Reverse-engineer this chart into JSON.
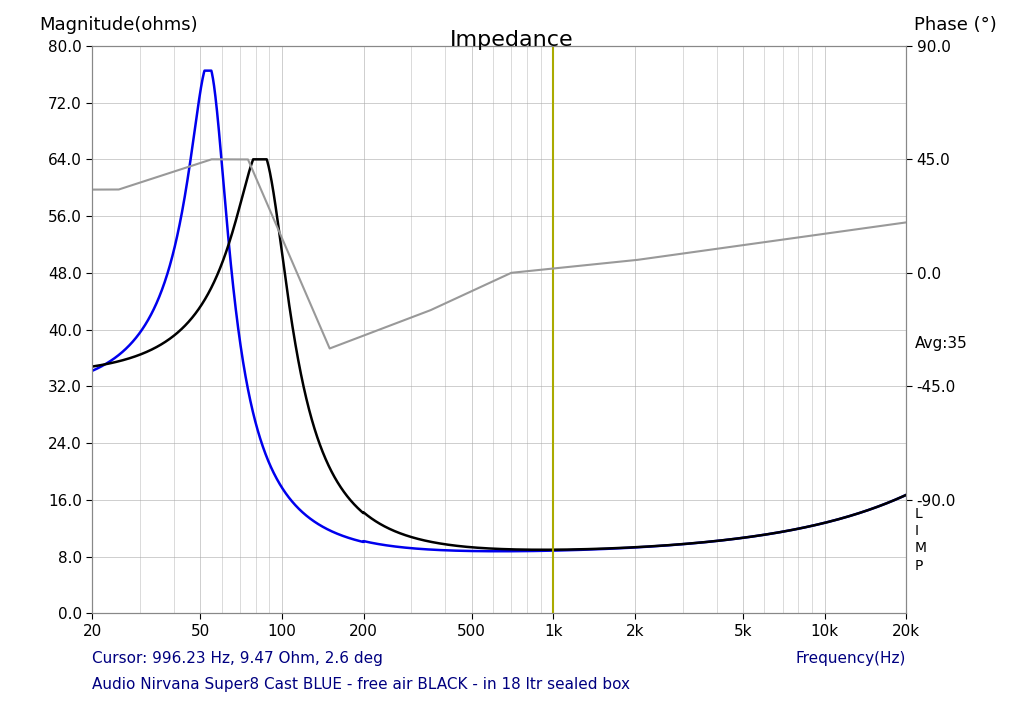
{
  "title": "Impedance",
  "ylabel_left": "Magnitude(ohms)",
  "ylabel_right": "Phase (°)",
  "xlabel": "Frequency(Hz)",
  "caption_left": "Cursor: 996.23 Hz, 9.47 Ohm, 2.6 deg",
  "caption_right": "Frequency(Hz)",
  "subtitle": "Audio Nirvana Super8 Cast BLUE - free air BLACK - in 18 ltr sealed box",
  "avg_label": "Avg:35",
  "limp_label": "L\nI\nM\nP",
  "cursor_freq": 996.23,
  "ylim_left": [
    0.0,
    80.0
  ],
  "ylim_right": [
    -135.0,
    90.0
  ],
  "yticks_left": [
    0.0,
    8.0,
    16.0,
    24.0,
    32.0,
    40.0,
    48.0,
    56.0,
    64.0,
    72.0,
    80.0
  ],
  "ytick_labels_left": [
    "0.0",
    "8.0",
    "16.0",
    "24.0",
    "32.0",
    "40.0",
    "48.0",
    "56.0",
    "64.0",
    "72.0",
    "80.0"
  ],
  "yticks_right_vals": [
    90.0,
    45.0,
    0.0,
    -45.0,
    -90.0
  ],
  "yticks_right_labels": [
    "90.0",
    "45.0",
    "0.0",
    "-45.0",
    "-90.0"
  ],
  "xtick_positions": [
    20,
    50,
    100,
    200,
    500,
    1000,
    2000,
    5000,
    10000,
    20000
  ],
  "xtick_labels": [
    "20",
    "50",
    "100",
    "200",
    "500",
    "1k",
    "2k",
    "5k",
    "10k",
    "20k"
  ],
  "bg_color": "#ffffff",
  "grid_color": "#aaaaaa",
  "blue_color": "#0000ee",
  "black_color": "#000000",
  "gray_color": "#999999",
  "cursor_color": "#aaaa00",
  "title_color": "#000000",
  "label_color": "#000000",
  "caption_color": "#000080"
}
